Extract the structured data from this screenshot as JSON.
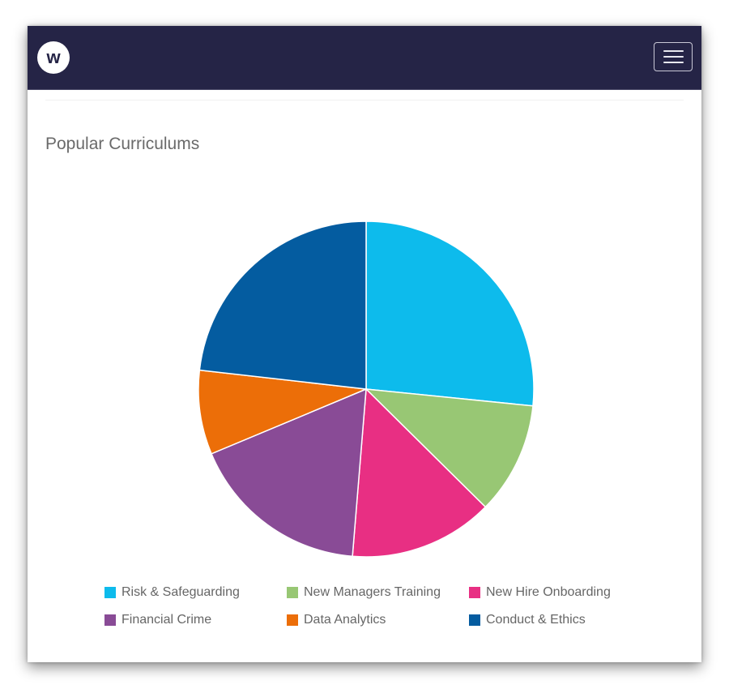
{
  "navbar": {
    "logo_letter": "w",
    "menu_icon": "hamburger-menu-icon",
    "background": "#252446"
  },
  "card": {
    "title": "Popular Curriculums"
  },
  "legend": [
    {
      "label": "Risk & Safeguarding",
      "color": "#0DBBEC"
    },
    {
      "label": "New Managers Training",
      "color": "#98C774"
    },
    {
      "label": "New Hire Onboarding",
      "color": "#E82F83"
    },
    {
      "label": "Financial Crime",
      "color": "#894B96"
    },
    {
      "label": "Data Analytics",
      "color": "#EC6E08"
    },
    {
      "label": "Conduct & Ethics",
      "color": "#045CA0"
    }
  ],
  "chart_data": {
    "type": "pie",
    "title": "Popular Curriculums",
    "categories": [
      "Risk & Safeguarding",
      "New Managers Training",
      "New Hire Onboarding",
      "Financial Crime",
      "Data Analytics",
      "Conduct & Ethics"
    ],
    "values": [
      26.6,
      10.8,
      13.9,
      17.4,
      8.1,
      23.2
    ],
    "values_note": "percentages measured from slice geometry; chart shows no value labels",
    "colors": [
      "#0DBBEC",
      "#98C774",
      "#E82F83",
      "#894B96",
      "#EC6E08",
      "#045CA0"
    ],
    "start_angle": "12 o'clock, clockwise",
    "legend_position": "bottom"
  }
}
